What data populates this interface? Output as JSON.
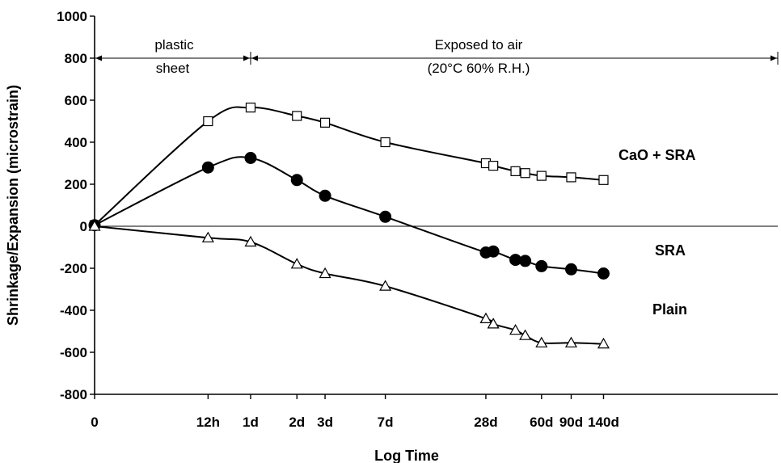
{
  "chart_data": {
    "type": "line",
    "xlabel": "Log Time",
    "ylabel": "Shrinkage/Expansion (microstrain)",
    "ylim": [
      -800,
      1000
    ],
    "yticks": [
      1000,
      800,
      600,
      400,
      200,
      0,
      -200,
      -400,
      -600,
      -800
    ],
    "x_scale": "log",
    "x_units": "days",
    "xticks": [
      {
        "value": 0,
        "label": "0"
      },
      {
        "value": 0.5,
        "label": "12h"
      },
      {
        "value": 1,
        "label": "1d"
      },
      {
        "value": 2,
        "label": "2d"
      },
      {
        "value": 3,
        "label": "3d"
      },
      {
        "value": 7,
        "label": "7d"
      },
      {
        "value": 28,
        "label": "28d"
      },
      {
        "value": 60,
        "label": "60d"
      },
      {
        "value": 90,
        "label": "90d"
      },
      {
        "value": 140,
        "label": "140d"
      }
    ],
    "annotations": {
      "plastic_line1": "plastic",
      "plastic_line2": "sheet",
      "air_line1": "Exposed to air",
      "air_line2": "(20°C 60% R.H.)"
    },
    "series": [
      {
        "name": "CaO + SRA",
        "marker": "open-square",
        "points": [
          {
            "x": 0,
            "y": 5
          },
          {
            "x": 0.5,
            "y": 500
          },
          {
            "x": 1,
            "y": 565
          },
          {
            "x": 2,
            "y": 525
          },
          {
            "x": 3,
            "y": 493
          },
          {
            "x": 7,
            "y": 400
          },
          {
            "x": 28,
            "y": 300
          },
          {
            "x": 31,
            "y": 288
          },
          {
            "x": 42,
            "y": 262
          },
          {
            "x": 48,
            "y": 253
          },
          {
            "x": 60,
            "y": 240
          },
          {
            "x": 90,
            "y": 233
          },
          {
            "x": 140,
            "y": 220
          }
        ]
      },
      {
        "name": "SRA",
        "marker": "filled-circle",
        "points": [
          {
            "x": 0,
            "y": 5
          },
          {
            "x": 0.5,
            "y": 280
          },
          {
            "x": 1,
            "y": 325
          },
          {
            "x": 2,
            "y": 220
          },
          {
            "x": 3,
            "y": 145
          },
          {
            "x": 7,
            "y": 45
          },
          {
            "x": 28,
            "y": -125
          },
          {
            "x": 31,
            "y": -120
          },
          {
            "x": 42,
            "y": -160
          },
          {
            "x": 48,
            "y": -165
          },
          {
            "x": 60,
            "y": -190
          },
          {
            "x": 90,
            "y": -205
          },
          {
            "x": 140,
            "y": -225
          }
        ]
      },
      {
        "name": "Plain",
        "marker": "open-triangle",
        "points": [
          {
            "x": 0,
            "y": 0
          },
          {
            "x": 0.5,
            "y": -55
          },
          {
            "x": 1,
            "y": -75
          },
          {
            "x": 2,
            "y": -180
          },
          {
            "x": 3,
            "y": -225
          },
          {
            "x": 7,
            "y": -285
          },
          {
            "x": 28,
            "y": -440
          },
          {
            "x": 31,
            "y": -465
          },
          {
            "x": 42,
            "y": -495
          },
          {
            "x": 48,
            "y": -520
          },
          {
            "x": 60,
            "y": -555
          },
          {
            "x": 90,
            "y": -555
          },
          {
            "x": 140,
            "y": -560
          }
        ]
      }
    ]
  }
}
